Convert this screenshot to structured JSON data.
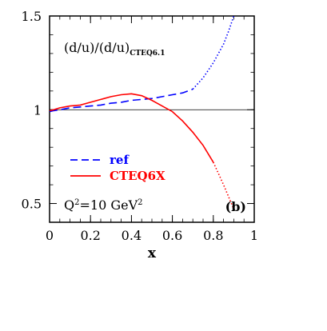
{
  "chart_data": {
    "type": "line",
    "title": "",
    "xlabel": "x",
    "ylabel": "",
    "xlim": [
      0,
      1
    ],
    "ylim": [
      0.4,
      1.5
    ],
    "x_ticks": [
      "0",
      "0.2",
      "0.4",
      "0.6",
      "0.8",
      "1"
    ],
    "y_ticks": [
      "0.5",
      "1",
      "1.5"
    ],
    "grid": false,
    "reference_line": 1.0,
    "legend_position": "bottom-left",
    "annotations": {
      "ratio_main": "(d/u)/(d/u)",
      "ratio_sub": "CTEQ6.1",
      "q2_main": "Q",
      "q2_sup": "2",
      "q2_rest": "=10 GeV",
      "q2_unit_sup": "2",
      "panel": "(b)"
    },
    "series": [
      {
        "name": "ref",
        "color": "#0000ff",
        "style": "dashed",
        "x": [
          0.0,
          0.02,
          0.05,
          0.1,
          0.15,
          0.2,
          0.25,
          0.3,
          0.35,
          0.4,
          0.45,
          0.5,
          0.55,
          0.6,
          0.65,
          0.7,
          0.75,
          0.8,
          0.85,
          0.875,
          0.9
        ],
        "y": [
          0.99,
          0.995,
          1.0,
          1.01,
          1.015,
          1.02,
          1.025,
          1.035,
          1.04,
          1.05,
          1.055,
          1.06,
          1.07,
          1.08,
          1.09,
          1.11,
          1.17,
          1.25,
          1.35,
          1.42,
          1.5
        ],
        "dotted_from_x": 0.7
      },
      {
        "name": "CTEQ6X",
        "color": "#ff0000",
        "style": "solid",
        "x": [
          0.0,
          0.02,
          0.05,
          0.1,
          0.15,
          0.2,
          0.25,
          0.3,
          0.35,
          0.4,
          0.45,
          0.5,
          0.55,
          0.6,
          0.65,
          0.7,
          0.75,
          0.8,
          0.85,
          0.9
        ],
        "y": [
          0.995,
          1.0,
          1.01,
          1.02,
          1.025,
          1.04,
          1.055,
          1.07,
          1.08,
          1.085,
          1.075,
          1.05,
          1.02,
          0.99,
          0.94,
          0.88,
          0.81,
          0.72,
          0.6,
          0.47
        ],
        "dotted_from_x": 0.8
      }
    ]
  }
}
